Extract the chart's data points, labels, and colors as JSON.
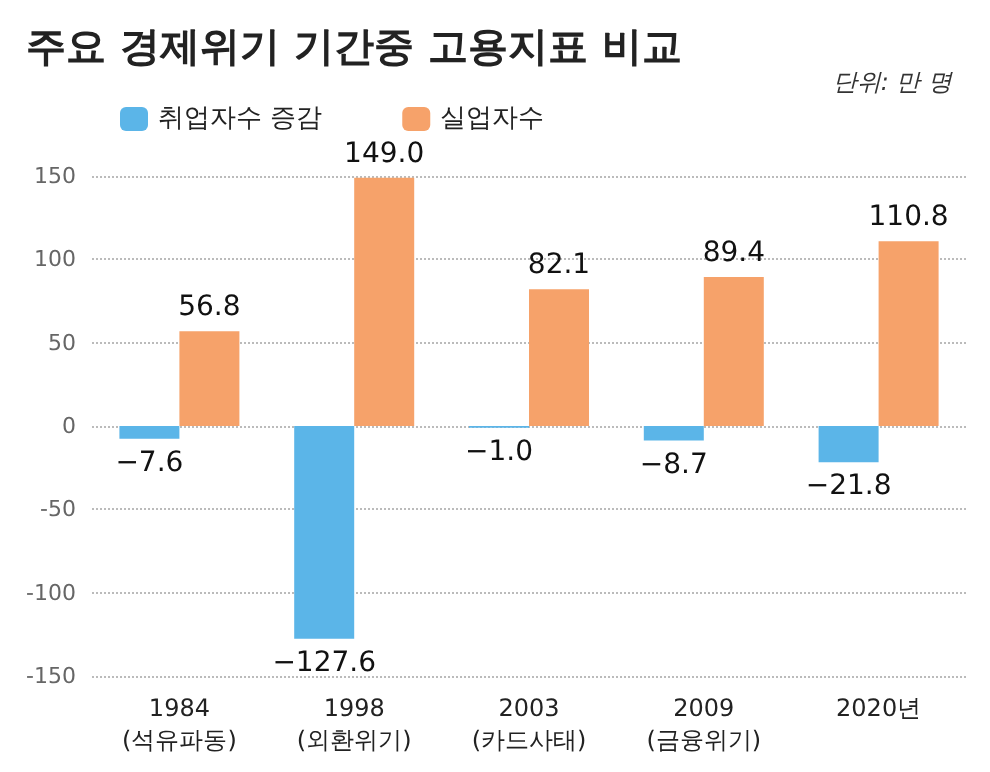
{
  "chart_data": {
    "type": "bar",
    "title": "주요 경제위기 기간중 고용지표 비교",
    "annotations": [
      "단위: 만 명"
    ],
    "categories": [
      "1984\n(석유파동)",
      "1998\n(외환위기)",
      "2003\n(카드사태)",
      "2009\n(금융위기)",
      "2020년"
    ],
    "series": [
      {
        "name": "취업자수 증감",
        "color": "#5bb5e8",
        "values": [
          -7.6,
          -127.6,
          -1,
          -8.7,
          -21.8
        ],
        "value_labels": [
          "−7.6",
          "−127.6",
          "−1.0",
          "−8.7",
          "−21.8"
        ]
      },
      {
        "name": "실업자수",
        "color": "#f6a26a",
        "values": [
          56.8,
          149,
          82.1,
          89.4,
          110.8
        ],
        "value_labels": [
          "56.8",
          "149.0",
          "82.1",
          "89.4",
          "110.8"
        ]
      }
    ],
    "ylim": [
      -150,
      150
    ],
    "yticks": [
      -150,
      -100,
      -50,
      0,
      50,
      100,
      150
    ],
    "grid": "y",
    "legend": "top left"
  }
}
